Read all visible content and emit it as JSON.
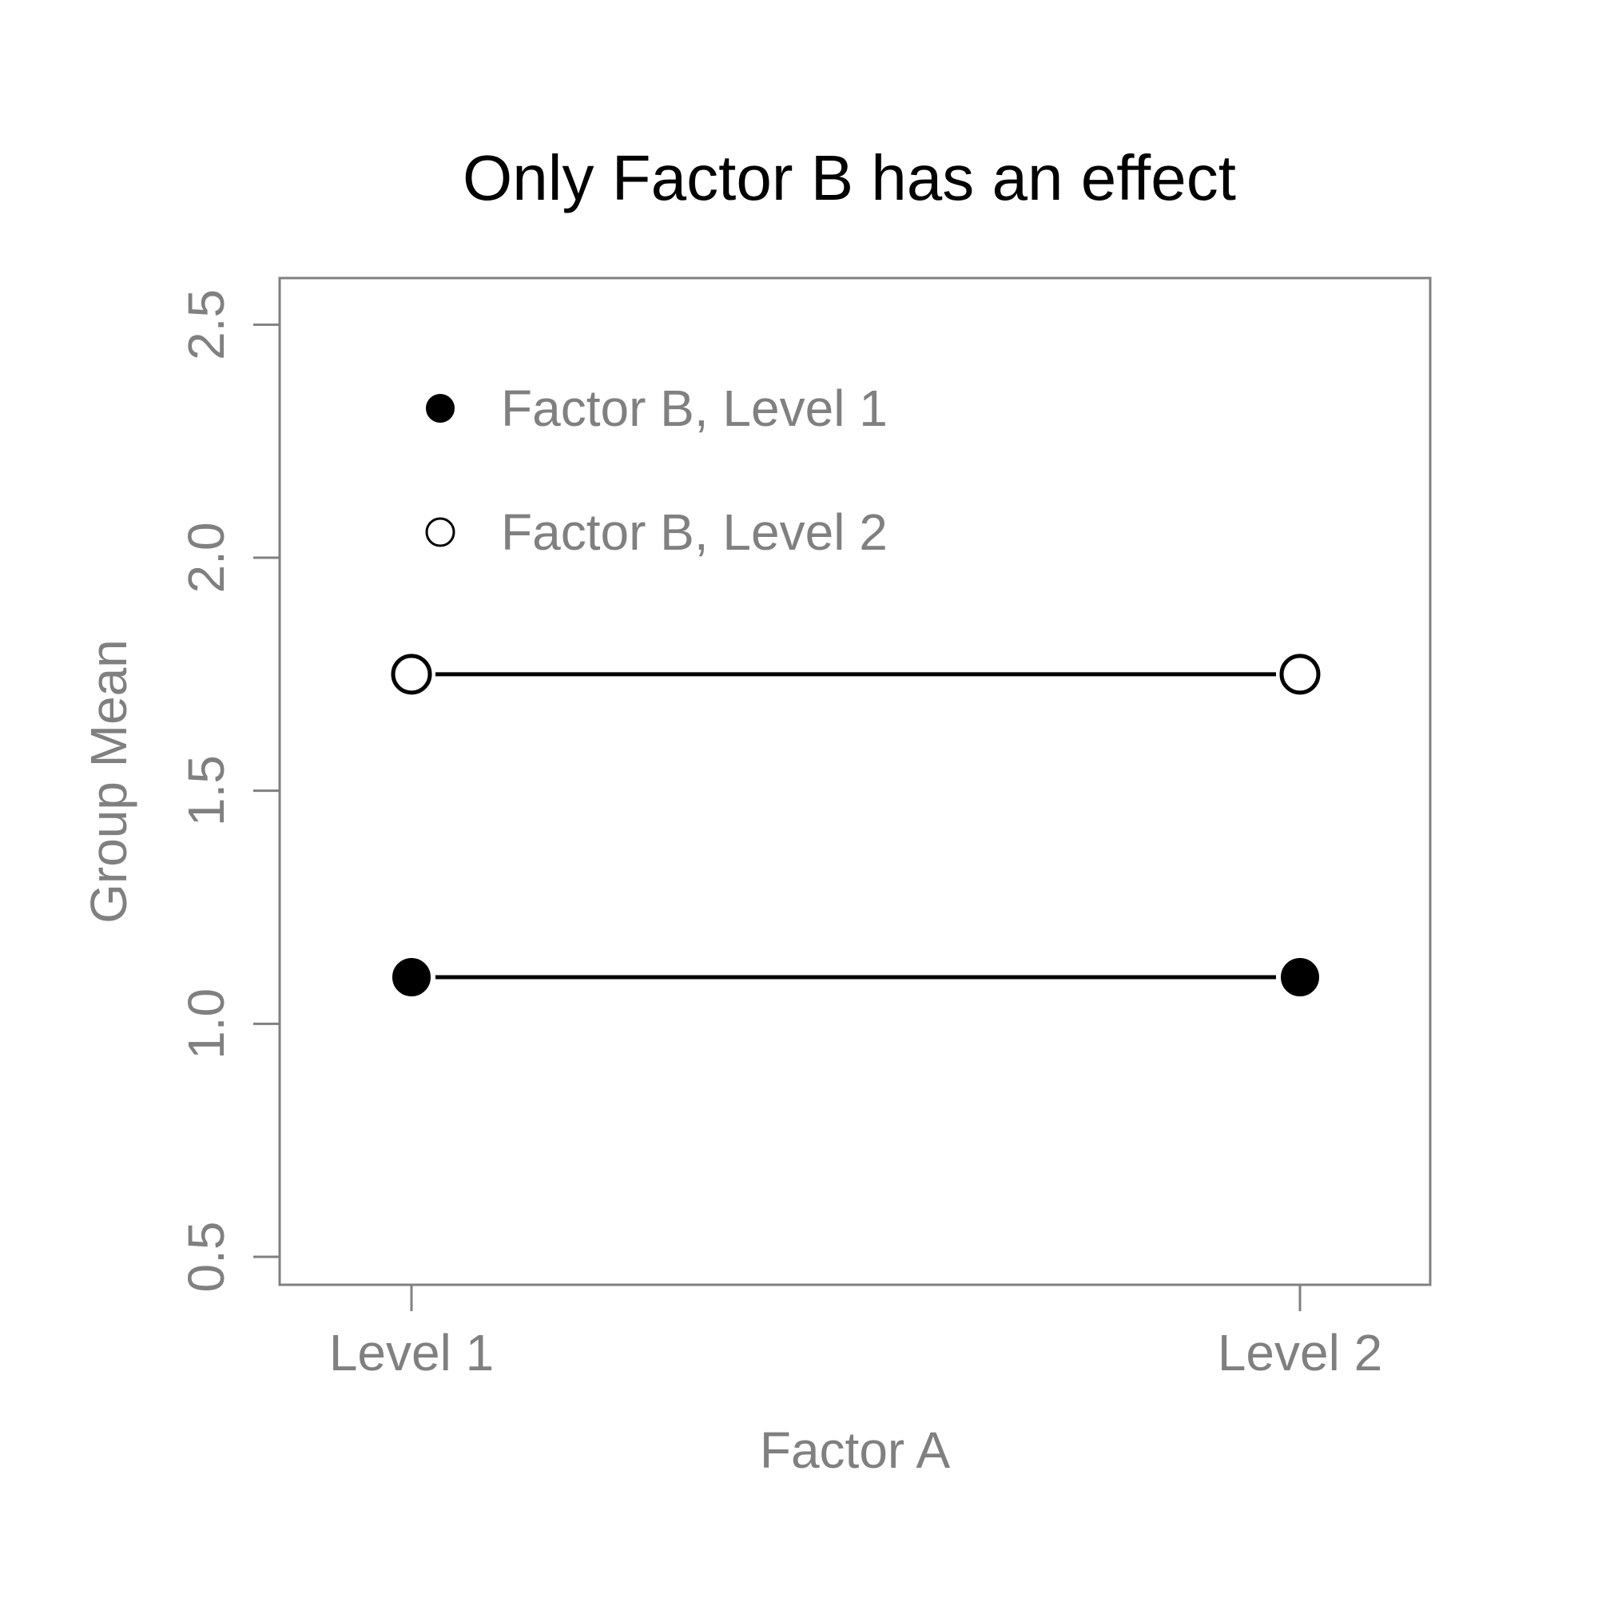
{
  "chart_data": {
    "type": "line",
    "title": "Only Factor B has an effect",
    "xlabel": "Factor A",
    "ylabel": "Group Mean",
    "categories": [
      "Level 1",
      "Level 2"
    ],
    "ylim": [
      0.44,
      2.6
    ],
    "yticks": [
      "0.5",
      "1.0",
      "1.5",
      "2.0",
      "2.5"
    ],
    "grid": false,
    "legend_position": "top-left",
    "series": [
      {
        "name": "Factor B, Level 1",
        "values": [
          1.1,
          1.1
        ],
        "marker": "filled"
      },
      {
        "name": "Factor B, Level 2",
        "values": [
          1.75,
          1.75
        ],
        "marker": "open"
      }
    ],
    "colors": {
      "axis": "#808080",
      "line": "#000000",
      "title": "#000000"
    }
  }
}
